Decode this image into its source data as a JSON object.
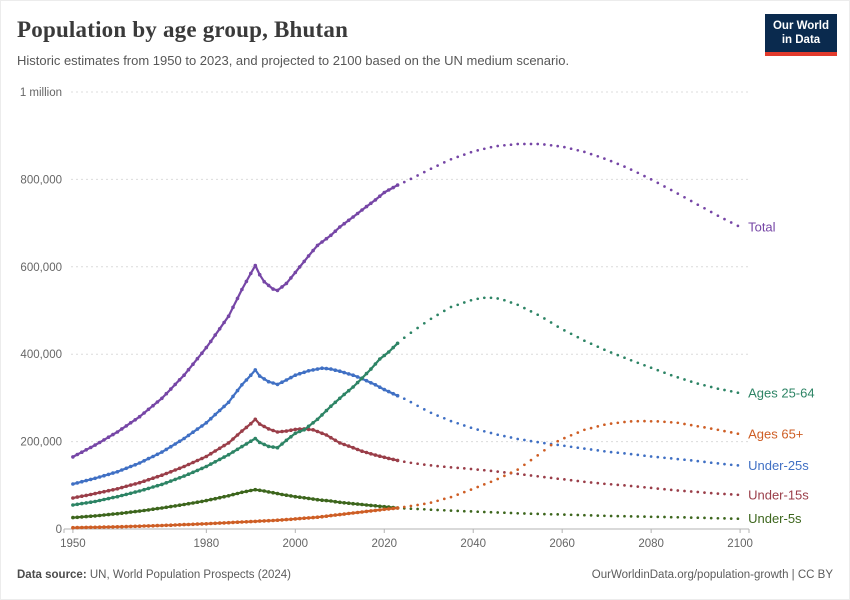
{
  "header": {
    "title": "Population by age group, Bhutan",
    "subtitle": "Historic estimates from 1950 to 2023, and projected to 2100 based on the UN medium scenario.",
    "logo": {
      "line1": "Our World",
      "line2": "in Data",
      "bg_color": "#0a2a4e",
      "accent_color": "#e23a2c"
    }
  },
  "footer": {
    "source_label": "Data source:",
    "source_text": " UN, World Population Prospects (2024)",
    "right_text": "OurWorldinData.org/population-growth | CC BY"
  },
  "chart_data": {
    "type": "line",
    "title": "Population by age group, Bhutan",
    "subtitle": "Historic estimates from 1950 to 2023, and projected to 2100 based on the UN medium scenario.",
    "xlabel": "",
    "ylabel": "",
    "grid": true,
    "legend_position": "right-of-line-ends",
    "xlim": [
      1948,
      2102
    ],
    "ylim": [
      0,
      1000000
    ],
    "projection_start_year": 2023,
    "x_ticks": [
      1950,
      1980,
      2000,
      2020,
      2040,
      2060,
      2080,
      2100
    ],
    "y_ticks": [
      {
        "value": 0,
        "label": "0"
      },
      {
        "value": 200000,
        "label": "200,000"
      },
      {
        "value": 400000,
        "label": "400,000"
      },
      {
        "value": 600000,
        "label": "600,000"
      },
      {
        "value": 800000,
        "label": "800,000"
      },
      {
        "value": 1000000,
        "label": "1 million"
      }
    ],
    "series": [
      {
        "id": "under-5s",
        "name": "Under-5s",
        "color": "#3d661d",
        "points": [
          [
            1950,
            26000
          ],
          [
            1955,
            30000
          ],
          [
            1960,
            35000
          ],
          [
            1965,
            41000
          ],
          [
            1970,
            48000
          ],
          [
            1975,
            56000
          ],
          [
            1980,
            65000
          ],
          [
            1985,
            76000
          ],
          [
            1988,
            84000
          ],
          [
            1990,
            88000
          ],
          [
            1991,
            90000
          ],
          [
            1993,
            87000
          ],
          [
            1995,
            83000
          ],
          [
            1997,
            79000
          ],
          [
            2000,
            74000
          ],
          [
            2003,
            70000
          ],
          [
            2005,
            67000
          ],
          [
            2008,
            64000
          ],
          [
            2010,
            61000
          ],
          [
            2013,
            58000
          ],
          [
            2015,
            56000
          ],
          [
            2018,
            53000
          ],
          [
            2020,
            51000
          ],
          [
            2023,
            48000
          ],
          [
            2025,
            47000
          ],
          [
            2030,
            44500
          ],
          [
            2035,
            42000
          ],
          [
            2040,
            40000
          ],
          [
            2045,
            38000
          ],
          [
            2050,
            36000
          ],
          [
            2055,
            34500
          ],
          [
            2060,
            33000
          ],
          [
            2065,
            31500
          ],
          [
            2070,
            30000
          ],
          [
            2075,
            29000
          ],
          [
            2080,
            28000
          ],
          [
            2085,
            27000
          ],
          [
            2090,
            26000
          ],
          [
            2095,
            24500
          ],
          [
            2100,
            23500
          ]
        ]
      },
      {
        "id": "under-15s",
        "name": "Under-15s",
        "color": "#9a3e49",
        "points": [
          [
            1950,
            71000
          ],
          [
            1955,
            81000
          ],
          [
            1960,
            92000
          ],
          [
            1965,
            106000
          ],
          [
            1970,
            123000
          ],
          [
            1975,
            143000
          ],
          [
            1980,
            166000
          ],
          [
            1985,
            197000
          ],
          [
            1988,
            224000
          ],
          [
            1990,
            241000
          ],
          [
            1991,
            251000
          ],
          [
            1992,
            240000
          ],
          [
            1994,
            229000
          ],
          [
            1996,
            222000
          ],
          [
            1998,
            224000
          ],
          [
            2000,
            228000
          ],
          [
            2002,
            229000
          ],
          [
            2004,
            227000
          ],
          [
            2007,
            215000
          ],
          [
            2010,
            197000
          ],
          [
            2013,
            186000
          ],
          [
            2015,
            178000
          ],
          [
            2018,
            169000
          ],
          [
            2020,
            164000
          ],
          [
            2023,
            157000
          ],
          [
            2025,
            153000
          ],
          [
            2030,
            146000
          ],
          [
            2035,
            141000
          ],
          [
            2040,
            137000
          ],
          [
            2045,
            132000
          ],
          [
            2050,
            126000
          ],
          [
            2055,
            120000
          ],
          [
            2060,
            114000
          ],
          [
            2065,
            108000
          ],
          [
            2070,
            103000
          ],
          [
            2075,
            99000
          ],
          [
            2080,
            94000
          ],
          [
            2085,
            89000
          ],
          [
            2090,
            85000
          ],
          [
            2095,
            81000
          ],
          [
            2100,
            78000
          ]
        ]
      },
      {
        "id": "under-25s",
        "name": "Under-25s",
        "color": "#4070c4",
        "points": [
          [
            1950,
            103000
          ],
          [
            1955,
            116000
          ],
          [
            1960,
            131000
          ],
          [
            1965,
            151000
          ],
          [
            1970,
            176000
          ],
          [
            1975,
            207000
          ],
          [
            1980,
            243000
          ],
          [
            1985,
            290000
          ],
          [
            1988,
            330000
          ],
          [
            1990,
            352000
          ],
          [
            1991,
            364000
          ],
          [
            1992,
            350000
          ],
          [
            1994,
            337000
          ],
          [
            1996,
            331000
          ],
          [
            1998,
            341000
          ],
          [
            2000,
            352000
          ],
          [
            2003,
            362000
          ],
          [
            2006,
            368000
          ],
          [
            2008,
            366000
          ],
          [
            2010,
            361000
          ],
          [
            2013,
            352000
          ],
          [
            2015,
            344000
          ],
          [
            2018,
            330000
          ],
          [
            2020,
            319000
          ],
          [
            2023,
            305000
          ],
          [
            2025,
            296000
          ],
          [
            2030,
            268000
          ],
          [
            2035,
            247000
          ],
          [
            2040,
            230000
          ],
          [
            2045,
            217000
          ],
          [
            2050,
            206000
          ],
          [
            2055,
            198000
          ],
          [
            2060,
            191000
          ],
          [
            2065,
            184000
          ],
          [
            2070,
            177000
          ],
          [
            2075,
            172000
          ],
          [
            2080,
            166000
          ],
          [
            2085,
            161000
          ],
          [
            2090,
            156000
          ],
          [
            2095,
            150000
          ],
          [
            2100,
            145000
          ]
        ]
      },
      {
        "id": "ages-65plus",
        "name": "Ages 65+",
        "color": "#ce5e25",
        "points": [
          [
            1950,
            3000
          ],
          [
            1960,
            5000
          ],
          [
            1970,
            8000
          ],
          [
            1980,
            12000
          ],
          [
            1990,
            17000
          ],
          [
            1995,
            19500
          ],
          [
            2000,
            23000
          ],
          [
            2005,
            27000
          ],
          [
            2010,
            33000
          ],
          [
            2015,
            39000
          ],
          [
            2020,
            45000
          ],
          [
            2023,
            48000
          ],
          [
            2025,
            51000
          ],
          [
            2030,
            59000
          ],
          [
            2035,
            73000
          ],
          [
            2040,
            92000
          ],
          [
            2045,
            112000
          ],
          [
            2050,
            136000
          ],
          [
            2055,
            172000
          ],
          [
            2058,
            196000
          ],
          [
            2060,
            206000
          ],
          [
            2065,
            227000
          ],
          [
            2070,
            240000
          ],
          [
            2075,
            246000
          ],
          [
            2078,
            247000
          ],
          [
            2082,
            246000
          ],
          [
            2086,
            243000
          ],
          [
            2090,
            236000
          ],
          [
            2095,
            227000
          ],
          [
            2100,
            217000
          ]
        ]
      },
      {
        "id": "ages-25-64",
        "name": "Ages 25-64",
        "color": "#2d8465",
        "points": [
          [
            1950,
            55000
          ],
          [
            1955,
            63000
          ],
          [
            1960,
            74000
          ],
          [
            1965,
            87000
          ],
          [
            1970,
            102000
          ],
          [
            1975,
            121000
          ],
          [
            1980,
            143000
          ],
          [
            1985,
            170000
          ],
          [
            1990,
            201000
          ],
          [
            1991,
            207000
          ],
          [
            1992,
            198000
          ],
          [
            1994,
            189000
          ],
          [
            1996,
            186000
          ],
          [
            1998,
            203000
          ],
          [
            2000,
            219000
          ],
          [
            2002,
            227000
          ],
          [
            2005,
            251000
          ],
          [
            2008,
            281000
          ],
          [
            2011,
            308000
          ],
          [
            2013,
            325000
          ],
          [
            2015,
            345000
          ],
          [
            2017,
            366000
          ],
          [
            2019,
            389000
          ],
          [
            2021,
            405000
          ],
          [
            2023,
            425000
          ],
          [
            2025,
            442000
          ],
          [
            2030,
            478000
          ],
          [
            2035,
            508000
          ],
          [
            2040,
            525000
          ],
          [
            2043,
            530000
          ],
          [
            2046,
            527000
          ],
          [
            2050,
            513000
          ],
          [
            2055,
            488000
          ],
          [
            2060,
            457000
          ],
          [
            2065,
            431000
          ],
          [
            2070,
            408000
          ],
          [
            2075,
            388000
          ],
          [
            2080,
            369000
          ],
          [
            2085,
            350000
          ],
          [
            2090,
            334000
          ],
          [
            2095,
            321000
          ],
          [
            2100,
            311000
          ]
        ]
      },
      {
        "id": "total",
        "name": "Total",
        "color": "#7646a6",
        "points": [
          [
            1950,
            165000
          ],
          [
            1955,
            192000
          ],
          [
            1960,
            222000
          ],
          [
            1965,
            257000
          ],
          [
            1970,
            299000
          ],
          [
            1975,
            352000
          ],
          [
            1980,
            415000
          ],
          [
            1985,
            487000
          ],
          [
            1988,
            548000
          ],
          [
            1990,
            585000
          ],
          [
            1991,
            603000
          ],
          [
            1992,
            582000
          ],
          [
            1993,
            566000
          ],
          [
            1995,
            549000
          ],
          [
            1996,
            546000
          ],
          [
            1998,
            562000
          ],
          [
            2000,
            587000
          ],
          [
            2003,
            625000
          ],
          [
            2005,
            649000
          ],
          [
            2008,
            672000
          ],
          [
            2010,
            691000
          ],
          [
            2013,
            714000
          ],
          [
            2015,
            730000
          ],
          [
            2018,
            753000
          ],
          [
            2020,
            770000
          ],
          [
            2023,
            787000
          ],
          [
            2025,
            796000
          ],
          [
            2030,
            822000
          ],
          [
            2035,
            846000
          ],
          [
            2040,
            864000
          ],
          [
            2045,
            876000
          ],
          [
            2050,
            881000
          ],
          [
            2055,
            881000
          ],
          [
            2060,
            875000
          ],
          [
            2065,
            863000
          ],
          [
            2070,
            846000
          ],
          [
            2075,
            825000
          ],
          [
            2080,
            800000
          ],
          [
            2085,
            773000
          ],
          [
            2090,
            745000
          ],
          [
            2095,
            717000
          ],
          [
            2100,
            691000
          ]
        ]
      }
    ]
  },
  "plot_style": {
    "grid_color": "#dcdcdc",
    "axis_color": "#b3b3b3"
  }
}
